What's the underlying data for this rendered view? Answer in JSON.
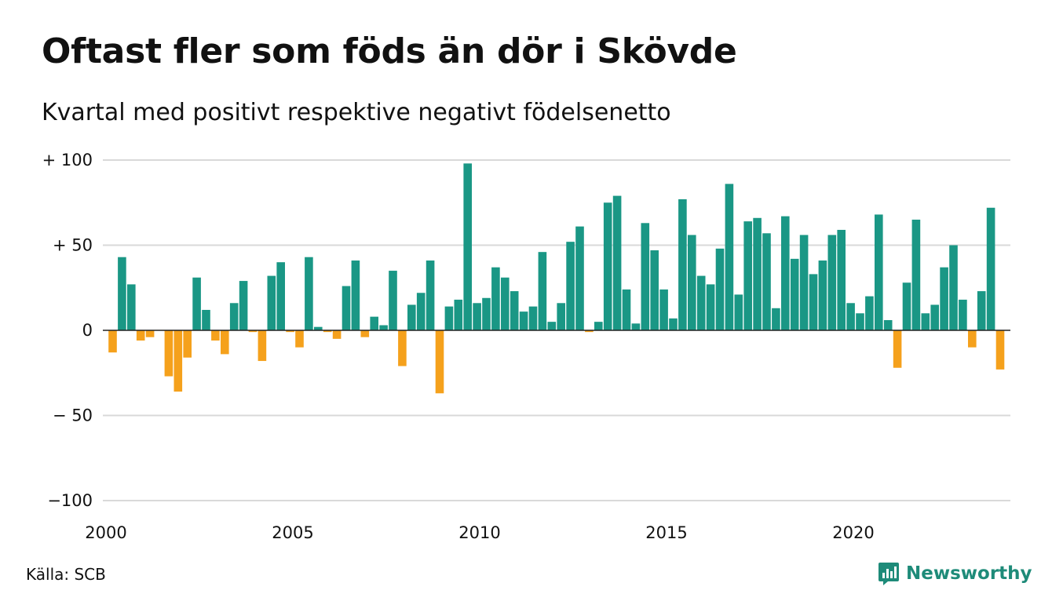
{
  "title": "Oftast fler som föds än dör i Skövde",
  "subtitle": "Kvartal med positivt respektive negativt födelsenetto",
  "source": "Källa: SCB",
  "brand": {
    "name": "Newsworthy",
    "icon": "newsworthy-logo-icon"
  },
  "colors": {
    "positive": "#1a9785",
    "negative": "#f5a11c",
    "grid": "#d9d9d9",
    "baseline": "#222222",
    "brand": "#1e8b79"
  },
  "chart_data": {
    "type": "bar",
    "ylim": [
      -100,
      100
    ],
    "xlim": [
      2000,
      2024
    ],
    "yticks": [
      {
        "value": 100,
        "label": "+ 100"
      },
      {
        "value": 50,
        "label": "+  50"
      },
      {
        "value": 0,
        "label": "0"
      },
      {
        "value": -50,
        "label": "− 50"
      },
      {
        "value": -100,
        "label": "−100"
      }
    ],
    "xticks": [
      {
        "value": 2000,
        "label": "2000"
      },
      {
        "value": 2005,
        "label": "2005"
      },
      {
        "value": 2010,
        "label": "2010"
      },
      {
        "value": 2015,
        "label": "2015"
      },
      {
        "value": 2020,
        "label": "2020"
      }
    ],
    "grid": true,
    "legend": "none",
    "start_year": 2000,
    "periods_per_year": 4,
    "values": [
      -13,
      43,
      27,
      -6,
      -4,
      0,
      -27,
      -36,
      -16,
      31,
      12,
      -6,
      -14,
      16,
      29,
      -1,
      -18,
      32,
      40,
      -1,
      -10,
      43,
      2,
      -1,
      -5,
      26,
      41,
      -4,
      8,
      3,
      35,
      -21,
      15,
      22,
      41,
      -37,
      14,
      18,
      98,
      16,
      19,
      37,
      31,
      23,
      11,
      14,
      46,
      5,
      16,
      52,
      61,
      -1,
      5,
      75,
      79,
      24,
      4,
      63,
      47,
      24,
      7,
      77,
      56,
      32,
      27,
      48,
      86,
      21,
      64,
      66,
      57,
      13,
      67,
      42,
      56,
      33,
      41,
      56,
      59,
      16,
      10,
      20,
      68,
      6,
      -22,
      28,
      65,
      10,
      15,
      37,
      50,
      18,
      -10,
      23,
      72,
      -23
    ]
  }
}
